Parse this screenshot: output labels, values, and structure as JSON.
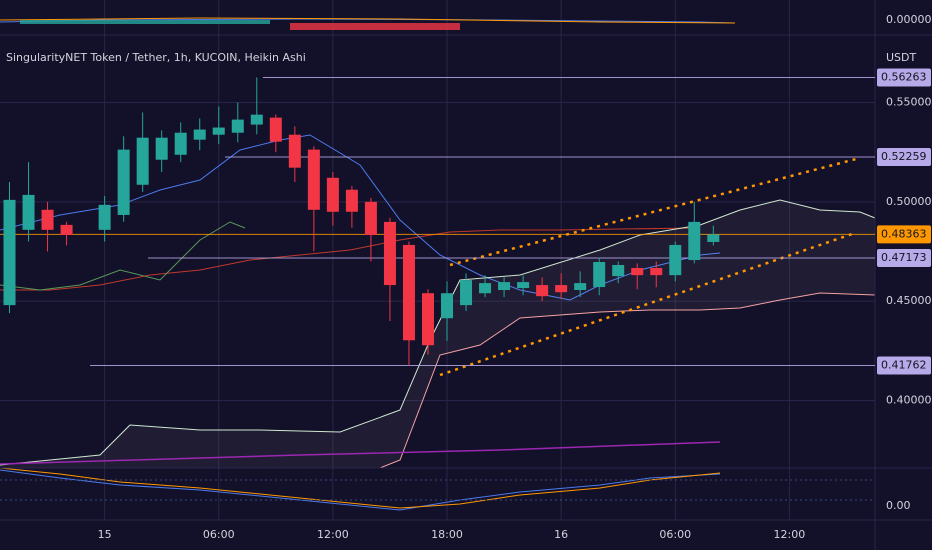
{
  "chart_data": {
    "type": "candlestick",
    "title": "SingularityNET Token / Tether, 1h, KUCOIN, Heikin Ashi",
    "currency": "USDT",
    "upper_pane_label": "0.00000",
    "lower_pane_label": "0.00",
    "up_color": "#26a69a",
    "down_color": "#f23645",
    "x": [
      -5,
      -4,
      -3,
      -2,
      0,
      1,
      2,
      3,
      4,
      5,
      6,
      7,
      8,
      9,
      10,
      11,
      12,
      13,
      14,
      15,
      16,
      17,
      18,
      19,
      20,
      21,
      22,
      23,
      24,
      25,
      26,
      27,
      28,
      29,
      30,
      31,
      32
    ],
    "open": [
      0.448,
      0.4859,
      0.496,
      0.4884,
      0.4859,
      0.4934,
      0.5086,
      0.5212,
      0.5237,
      0.5313,
      0.5338,
      0.5348,
      0.5389,
      0.5424,
      0.5338,
      0.5263,
      0.5121,
      0.5061,
      0.5,
      0.4899,
      0.4783,
      0.454,
      0.4414,
      0.448,
      0.454,
      0.4556,
      0.4566,
      0.4581,
      0.4581,
      0.4556,
      0.4571,
      0.4626,
      0.4667,
      0.4667,
      0.4631,
      0.4707,
      0.4798
    ],
    "high": [
      0.51,
      0.52,
      0.5,
      0.49,
      0.503,
      0.533,
      0.545,
      0.536,
      0.54,
      0.542,
      0.548,
      0.55,
      0.5626,
      0.544,
      0.538,
      0.528,
      0.515,
      0.508,
      0.502,
      0.492,
      0.48,
      0.456,
      0.46,
      0.464,
      0.463,
      0.462,
      0.463,
      0.462,
      0.464,
      0.465,
      0.472,
      0.47,
      0.469,
      0.47,
      0.48,
      0.5,
      0.488
    ],
    "low": [
      0.444,
      0.48,
      0.475,
      0.478,
      0.48,
      0.49,
      0.505,
      0.515,
      0.52,
      0.526,
      0.529,
      0.53,
      0.534,
      0.525,
      0.51,
      0.475,
      0.488,
      0.487,
      0.47,
      0.44,
      0.4176,
      0.423,
      0.43,
      0.445,
      0.452,
      0.452,
      0.453,
      0.45,
      0.451,
      0.452,
      0.453,
      0.459,
      0.456,
      0.457,
      0.46,
      0.469,
      0.478
    ],
    "close": [
      0.501,
      0.5035,
      0.4859,
      0.4833,
      0.4985,
      0.5263,
      0.5323,
      0.5323,
      0.5348,
      0.5364,
      0.5374,
      0.5414,
      0.5439,
      0.5303,
      0.5172,
      0.496,
      0.495,
      0.495,
      0.4833,
      0.4581,
      0.4303,
      0.4278,
      0.454,
      0.4606,
      0.4591,
      0.4596,
      0.4596,
      0.4525,
      0.4545,
      0.4591,
      0.4697,
      0.4682,
      0.4631,
      0.4631,
      0.4783,
      0.4899,
      0.4836
    ],
    "levels": [
      0.56263,
      0.52259,
      0.48363,
      0.47173,
      0.41762
    ],
    "level_colors": [
      "#b8a9e8",
      "#b8a9e8",
      "#ff9800",
      "#b8a9e8",
      "#b8a9e8"
    ],
    "ylim": [
      0.366,
      0.584
    ],
    "yticks": [
      {
        "value": 0.55,
        "label": "0.55000"
      },
      {
        "value": 0.5,
        "label": "0.50000"
      },
      {
        "value": 0.45,
        "label": "0.45000"
      },
      {
        "value": 0.4,
        "label": "0.40000"
      }
    ],
    "xlim": [
      -5.5,
      40.5
    ],
    "xticks": [
      {
        "value": 0,
        "label": "15"
      },
      {
        "value": 6,
        "label": "06:00"
      },
      {
        "value": 12,
        "label": "12:00"
      },
      {
        "value": 18,
        "label": "18:00"
      },
      {
        "value": 24,
        "label": "16"
      },
      {
        "value": 30,
        "label": "06:00"
      },
      {
        "value": 36,
        "label": "12:00"
      }
    ],
    "grid": true
  }
}
